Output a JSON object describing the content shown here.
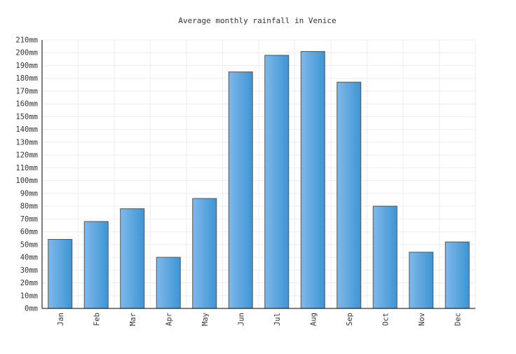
{
  "chart_data": {
    "type": "bar",
    "title": "Average monthly rainfall in Venice",
    "categories": [
      "Jan",
      "Feb",
      "Mar",
      "Apr",
      "May",
      "Jun",
      "Jul",
      "Aug",
      "Sep",
      "Oct",
      "Nov",
      "Dec"
    ],
    "values": [
      54,
      68,
      78,
      40,
      86,
      185,
      198,
      201,
      177,
      80,
      44,
      52
    ],
    "ylim": [
      0,
      210
    ],
    "y_tick_step": 10,
    "y_tick_unit": "mm",
    "grid": true,
    "colors": {
      "bar_left": "#7fb8ea",
      "bar_right": "#3d95d4",
      "bar_stroke": "#555555",
      "grid": "#eeeeee",
      "axis": "#000000"
    }
  }
}
